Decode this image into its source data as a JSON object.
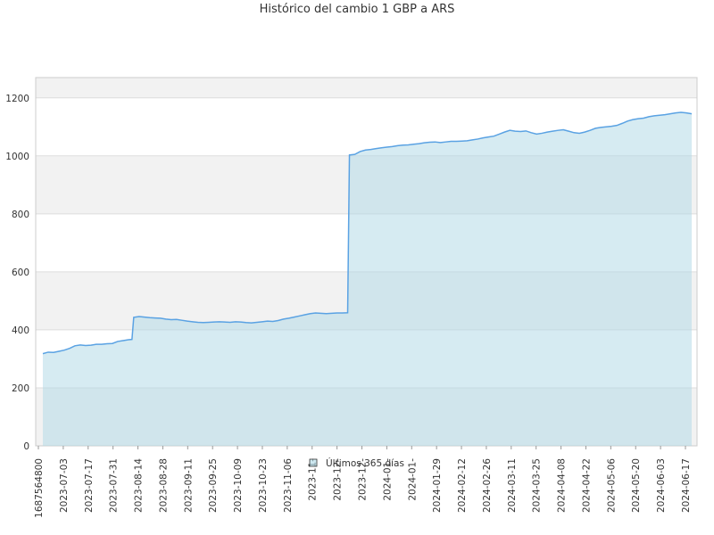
{
  "chart_data": {
    "type": "area",
    "title": "Histórico del cambio 1 GBP a ARS",
    "xlabel": "",
    "ylabel": "",
    "ylim": [
      0,
      1270
    ],
    "y_ticks": [
      0,
      200,
      400,
      600,
      800,
      1000,
      1200
    ],
    "grid": true,
    "alternating_bands": true,
    "legend_position": "bottom-center",
    "colors": {
      "line": "#5aa2e3",
      "fill": "#add8e6",
      "band": "#f2f2f2",
      "grid": "#dddddd",
      "axis": "#cccccc"
    },
    "x_tick_labels": [
      "1687564800",
      "2023-07-03",
      "2023-07-17",
      "2023-07-31",
      "2023-08-14",
      "2023-08-28",
      "2023-09-11",
      "2023-09-25",
      "2023-10-09",
      "2023-10-23",
      "2023-11-06",
      "2023-11-",
      "2023-12-",
      "2023-12-",
      "2024-01-",
      "2024-01-",
      "2024-01-29",
      "2024-02-12",
      "2024-02-26",
      "2024-03-11",
      "2024-03-25",
      "2024-04-08",
      "2024-04-22",
      "2024-05-06",
      "2024-05-20",
      "2024-06-03",
      "2024-06-17"
    ],
    "series": [
      {
        "name": "Últimos 365 días",
        "x": [
          "2023-06-24",
          "2023-06-27",
          "2023-06-30",
          "2023-07-03",
          "2023-07-06",
          "2023-07-09",
          "2023-07-12",
          "2023-07-15",
          "2023-07-18",
          "2023-07-21",
          "2023-07-24",
          "2023-07-27",
          "2023-07-30",
          "2023-08-02",
          "2023-08-05",
          "2023-08-08",
          "2023-08-11",
          "2023-08-13",
          "2023-08-14",
          "2023-08-17",
          "2023-08-20",
          "2023-08-23",
          "2023-08-26",
          "2023-08-29",
          "2023-09-01",
          "2023-09-04",
          "2023-09-07",
          "2023-09-10",
          "2023-09-13",
          "2023-09-16",
          "2023-09-19",
          "2023-09-22",
          "2023-09-25",
          "2023-09-28",
          "2023-10-01",
          "2023-10-04",
          "2023-10-07",
          "2023-10-10",
          "2023-10-13",
          "2023-10-16",
          "2023-10-19",
          "2023-10-22",
          "2023-10-25",
          "2023-10-28",
          "2023-10-31",
          "2023-11-03",
          "2023-11-06",
          "2023-11-09",
          "2023-11-12",
          "2023-11-15",
          "2023-11-18",
          "2023-11-21",
          "2023-11-24",
          "2023-11-27",
          "2023-11-30",
          "2023-12-03",
          "2023-12-06",
          "2023-12-09",
          "2023-12-12",
          "2023-12-13",
          "2023-12-16",
          "2023-12-19",
          "2023-12-22",
          "2023-12-25",
          "2023-12-28",
          "2023-12-31",
          "2024-01-03",
          "2024-01-06",
          "2024-01-09",
          "2024-01-12",
          "2024-01-15",
          "2024-01-18",
          "2024-01-21",
          "2024-01-24",
          "2024-01-27",
          "2024-01-30",
          "2024-02-02",
          "2024-02-05",
          "2024-02-08",
          "2024-02-11",
          "2024-02-14",
          "2024-02-17",
          "2024-02-20",
          "2024-02-23",
          "2024-02-26",
          "2024-02-29",
          "2024-03-03",
          "2024-03-06",
          "2024-03-09",
          "2024-03-12",
          "2024-03-15",
          "2024-03-18",
          "2024-03-21",
          "2024-03-24",
          "2024-03-27",
          "2024-03-30",
          "2024-04-02",
          "2024-04-05",
          "2024-04-08",
          "2024-04-11",
          "2024-04-14",
          "2024-04-17",
          "2024-04-20",
          "2024-04-23",
          "2024-04-26",
          "2024-04-29",
          "2024-05-02",
          "2024-05-05",
          "2024-05-08",
          "2024-05-11",
          "2024-05-14",
          "2024-05-17",
          "2024-05-20",
          "2024-05-23",
          "2024-05-26",
          "2024-05-29",
          "2024-06-01",
          "2024-06-04",
          "2024-06-07",
          "2024-06-10",
          "2024-06-13",
          "2024-06-16",
          "2024-06-19",
          "2024-06-22"
        ],
        "values": [
          318,
          323,
          322,
          326,
          330,
          336,
          345,
          348,
          346,
          347,
          350,
          350,
          352,
          353,
          360,
          363,
          366,
          367,
          443,
          446,
          444,
          442,
          441,
          440,
          437,
          435,
          436,
          433,
          430,
          428,
          426,
          425,
          426,
          427,
          428,
          427,
          426,
          428,
          427,
          425,
          424,
          426,
          428,
          430,
          429,
          432,
          437,
          440,
          444,
          448,
          452,
          456,
          458,
          457,
          456,
          457,
          458,
          458,
          459,
          1003,
          1005,
          1015,
          1020,
          1022,
          1025,
          1028,
          1030,
          1032,
          1035,
          1037,
          1038,
          1040,
          1042,
          1045,
          1047,
          1048,
          1046,
          1048,
          1050,
          1050,
          1051,
          1052,
          1055,
          1058,
          1062,
          1065,
          1068,
          1075,
          1082,
          1088,
          1085,
          1084,
          1086,
          1080,
          1075,
          1078,
          1082,
          1085,
          1088,
          1090,
          1085,
          1080,
          1078,
          1082,
          1088,
          1095,
          1098,
          1100,
          1102,
          1105,
          1112,
          1120,
          1125,
          1128,
          1130,
          1135,
          1138,
          1140,
          1142,
          1145,
          1148,
          1150,
          1148,
          1145
        ]
      }
    ]
  }
}
